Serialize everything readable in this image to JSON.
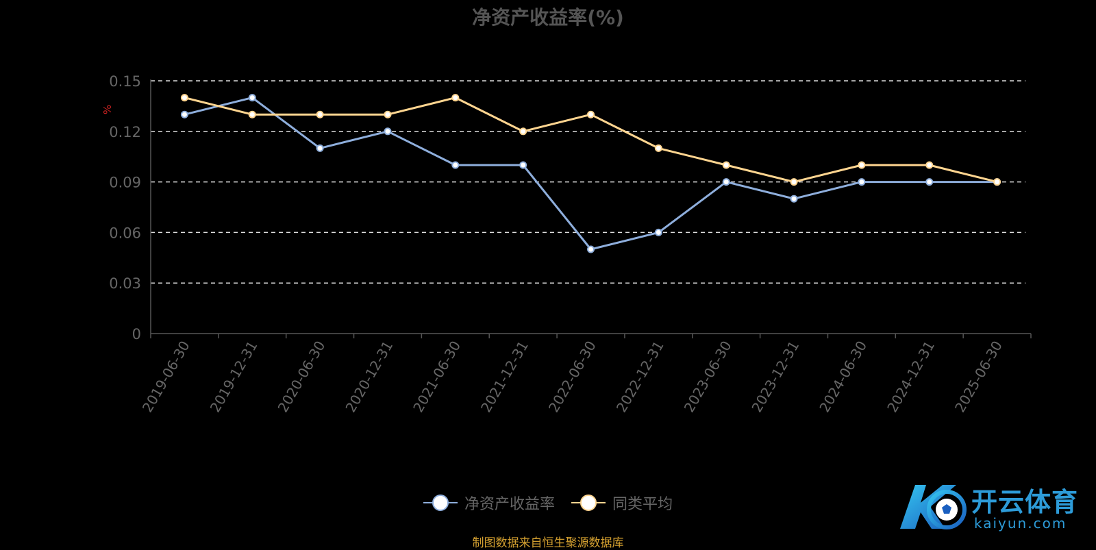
{
  "chart_data": {
    "type": "line",
    "title": "净资产收益率(%)",
    "ylabel": "%",
    "ylim": [
      0,
      0.15
    ],
    "yticks": [
      "0",
      "0.03",
      "0.06",
      "0.09",
      "0.12",
      "0.15"
    ],
    "categories": [
      "2019-06-30",
      "2019-12-31",
      "2020-06-30",
      "2020-12-31",
      "2021-06-30",
      "2021-12-31",
      "2022-06-30",
      "2022-12-31",
      "2023-06-30",
      "2023-12-31",
      "2024-06-30",
      "2024-12-31",
      "2025-06-30"
    ],
    "series": [
      {
        "name": "净资产收益率",
        "color": "#8eaedc",
        "values": [
          0.13,
          0.14,
          0.11,
          0.12,
          0.1,
          0.1,
          0.05,
          0.06,
          0.09,
          0.08,
          0.09,
          0.09,
          0.09
        ]
      },
      {
        "name": "同类平均",
        "color": "#ffd590",
        "values": [
          0.14,
          0.13,
          0.13,
          0.13,
          0.14,
          0.12,
          0.13,
          0.11,
          0.1,
          0.09,
          0.1,
          0.1,
          0.09
        ]
      }
    ],
    "grid": true,
    "legend_position": "bottom"
  },
  "footer": {
    "source": "制图数据来自恒生聚源数据库"
  },
  "logo": {
    "cn": "开云体育",
    "en": "kaiyun.com"
  }
}
